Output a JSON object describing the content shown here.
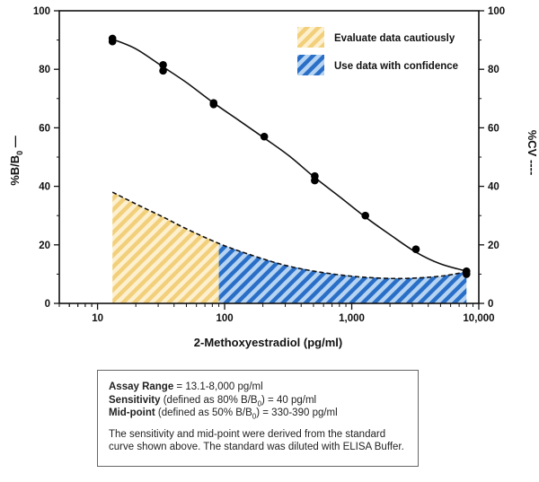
{
  "chart_data": {
    "type": "line",
    "x_scale": "log",
    "xlabel": "2-Methoxyestradiol (pg/ml)",
    "ylabel_left": "%B/B0 —",
    "ylabel_right": "%CV ----",
    "xlim": [
      5,
      10000
    ],
    "ylim": [
      0,
      100
    ],
    "x_ticks": [
      10,
      100,
      1000,
      10000
    ],
    "x_tick_labels": [
      "10",
      "100",
      "1,000",
      "10,000"
    ],
    "y_ticks": [
      0,
      20,
      40,
      60,
      80,
      100
    ],
    "y_tick_labels": [
      "0",
      "20",
      "40",
      "60",
      "80",
      "100"
    ],
    "legend": [
      {
        "label": "Evaluate data cautiously",
        "color": "#f2cf7a"
      },
      {
        "label": "Use data with confidence",
        "color": "#2a6fc7"
      }
    ],
    "legend_position": "top-right",
    "series": [
      {
        "name": "%B/B0",
        "style": "solid",
        "points": [
          {
            "x": 13.1,
            "y": 90.5
          },
          {
            "x": 13.1,
            "y": 89.5
          },
          {
            "x": 32.8,
            "y": 81.5
          },
          {
            "x": 32.8,
            "y": 79.5
          },
          {
            "x": 81.9,
            "y": 68.5
          },
          {
            "x": 81.9,
            "y": 68.0
          },
          {
            "x": 205,
            "y": 57.0
          },
          {
            "x": 512,
            "y": 43.5
          },
          {
            "x": 512,
            "y": 42.0
          },
          {
            "x": 1280,
            "y": 30.0
          },
          {
            "x": 3200,
            "y": 18.5
          },
          {
            "x": 8000,
            "y": 11.0
          },
          {
            "x": 8000,
            "y": 10.0
          }
        ],
        "curve": [
          [
            13.1,
            90.3
          ],
          [
            20,
            87.0
          ],
          [
            32.8,
            80.8
          ],
          [
            50,
            75.5
          ],
          [
            81.9,
            68.5
          ],
          [
            130,
            62.5
          ],
          [
            205,
            56.5
          ],
          [
            320,
            50.5
          ],
          [
            512,
            43.0
          ],
          [
            800,
            36.5
          ],
          [
            1280,
            29.5
          ],
          [
            2000,
            23.5
          ],
          [
            3200,
            17.5
          ],
          [
            5000,
            13.5
          ],
          [
            8000,
            11.0
          ]
        ]
      },
      {
        "name": "%CV",
        "style": "dashed",
        "curve": [
          [
            13.1,
            38.0
          ],
          [
            20,
            34.0
          ],
          [
            32.8,
            29.5
          ],
          [
            50,
            25.5
          ],
          [
            90,
            20.5
          ],
          [
            150,
            17.0
          ],
          [
            300,
            13.0
          ],
          [
            600,
            10.5
          ],
          [
            1200,
            9.0
          ],
          [
            2500,
            8.5
          ],
          [
            5000,
            9.3
          ],
          [
            8000,
            10.8
          ]
        ]
      }
    ],
    "shaded_regions": [
      {
        "label": "Evaluate data cautiously",
        "x_range": [
          13.1,
          90
        ],
        "color": "#f2cf7a"
      },
      {
        "label": "Use data with confidence",
        "x_range": [
          90,
          8000
        ],
        "color": "#2a6fc7"
      }
    ]
  },
  "info_box": {
    "range_label": "Assay Range",
    "range_text": " = 13.1-8,000 pg/ml",
    "sensitivity_label": "Sensitivity",
    "sensitivity_pre": " (defined as 80% B/B",
    "sensitivity_sub": "0",
    "sensitivity_post": ") = 40 pg/ml",
    "midpoint_label": "Mid-point",
    "midpoint_pre": " (defined as 50% B/B",
    "midpoint_sub": "0",
    "midpoint_post": ") = 330-390 pg/ml",
    "description": "The sensitivity and mid-point were derived from the standard curve shown above. The standard was diluted with ELISA Buffer."
  }
}
